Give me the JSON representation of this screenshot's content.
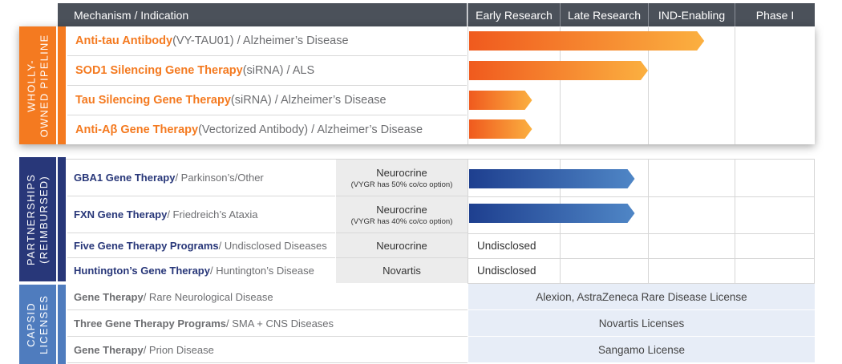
{
  "header": {
    "mechanism_label": "Mechanism / Indication",
    "phases": [
      "Early Research",
      "Late Research",
      "IND-Enabling",
      "Phase I"
    ]
  },
  "groups": {
    "wholly_owned": {
      "label": "WHOLLY-\nOWNED PIPELINE",
      "color": "#f47a20"
    },
    "partnerships": {
      "label": "PARTNERSHIPS\n(REIMBURSED)",
      "color": "#283779"
    },
    "capsid": {
      "label": "CAPSID\nLICENSES",
      "color": "#4f7cbe"
    }
  },
  "wholly_owned_rows": [
    {
      "name": "Anti-tau Antibody",
      "detail": " (VY-TAU01) / Alzheimer’s Disease"
    },
    {
      "name": "SOD1 Silencing Gene Therapy",
      "detail": " (siRNA) / ALS"
    },
    {
      "name": "Tau Silencing Gene Therapy",
      "detail": " (siRNA) / Alzheimer’s Disease"
    },
    {
      "name": "Anti-Aβ Gene Therapy",
      "detail": " (Vectorized Antibody) / Alzheimer’s Disease"
    }
  ],
  "partnership_rows": [
    {
      "name": "GBA1 Gene Therapy",
      "detail": " / Parkinson’s/Other",
      "partner": "Neurocrine",
      "note": "(VYGR has 50% co/co option)",
      "status": ""
    },
    {
      "name": "FXN Gene Therapy",
      "detail": " / Friedreich’s Ataxia",
      "partner": "Neurocrine",
      "note": "(VYGR has 40% co/co option)",
      "status": ""
    },
    {
      "name": "Five Gene Therapy Programs",
      "detail": " / Undisclosed Diseases",
      "partner": "Neurocrine",
      "note": "",
      "status": "Undisclosed"
    },
    {
      "name": "Huntington’s Gene Therapy",
      "detail": " / Huntington’s Disease",
      "partner": "Novartis",
      "note": "",
      "status": "Undisclosed"
    }
  ],
  "capsid_rows": [
    {
      "name": "Gene Therapy",
      "detail": " / Rare Neurological Disease",
      "license": "Alexion, AstraZeneca Rare Disease License"
    },
    {
      "name": "Three Gene Therapy Programs",
      "detail": " / SMA + CNS Diseases",
      "license": "Novartis Licenses"
    },
    {
      "name": "Gene Therapy",
      "detail": " / Prion Disease",
      "license": "Sangamo License"
    }
  ],
  "chart_data": {
    "type": "bar",
    "orientation": "horizontal",
    "stages": [
      "Early Research",
      "Late Research",
      "IND-Enabling",
      "Phase I"
    ],
    "scale_note": "progress measured in stage units (0 = start of Early Research, 4 = end of Phase I)",
    "xlim": [
      0,
      4
    ],
    "series": [
      {
        "categories": [
          "Anti-tau Antibody",
          "SOD1 Silencing Gene Therapy",
          "Tau Silencing Gene Therapy",
          "Anti-Aβ Gene Therapy"
        ],
        "values": [
          2.65,
          2.0,
          0.7,
          0.7
        ],
        "color": "#f47a20"
      },
      {
        "categories": [
          "GBA1 Gene Therapy",
          "FXN Gene Therapy"
        ],
        "values": [
          1.85,
          1.85
        ],
        "color": "#283779"
      }
    ]
  }
}
